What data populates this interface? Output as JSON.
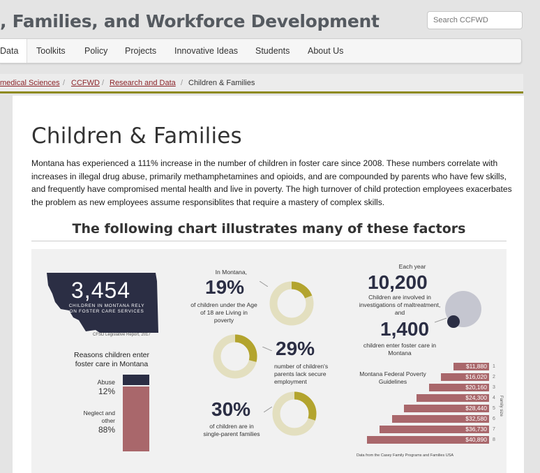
{
  "header": {
    "site_title": ", Families, and Workforce Development",
    "search_placeholder": "Search CCFWD"
  },
  "nav": {
    "items": [
      {
        "label": "Data"
      },
      {
        "label": "Toolkits"
      },
      {
        "label": "Policy"
      },
      {
        "label": "Projects"
      },
      {
        "label": "Innovative Ideas"
      },
      {
        "label": "Students"
      },
      {
        "label": "About Us"
      }
    ]
  },
  "breadcrumb": {
    "items": [
      {
        "label": "medical Sciences"
      },
      {
        "label": "CCFWD"
      },
      {
        "label": "Research and Data"
      },
      {
        "label": "Children & Families"
      }
    ],
    "separator": "/"
  },
  "page": {
    "title": "Children & Families",
    "intro": "Montana has experienced a 111% increase in the number of children in foster care since 2008. These numbers correlate with increases in illegal drug abuse, primarily methamphetamines and opioids, and are compounded by parents who have few skills, and frequently have compromised mental health and live in poverty. The high turnover of child protection employees exacerbates the problem as new employees assume responsiblites that require a mastery of complex skills.",
    "chart_heading": "The following chart illustrates many of these factors"
  },
  "infographic": {
    "montana": {
      "number": "3,454",
      "label": "CHILDREN IN MONTANA RELY ON FOSTER CARE SERVICES",
      "source": "CFSD Legislative Report, 2017"
    },
    "reasons": {
      "title": "Reasons children enter foster care in Montana",
      "abuse_label": "Abuse",
      "abuse_pct": "12%",
      "neglect_label": "Neglect and other",
      "neglect_pct": "88%"
    },
    "stat_poverty": {
      "lead": "In Montana,",
      "value": "19%",
      "text": "of children under the Age of 18 are Living in poverty",
      "fraction": 0.19
    },
    "stat_employment": {
      "value": "29%",
      "text": "number of children's parents lack secure employment",
      "fraction": 0.29
    },
    "stat_single": {
      "value": "30%",
      "text": "of children are in single-parent families",
      "fraction": 0.3
    },
    "investigations": {
      "lead": "Each year",
      "value": "10,200",
      "text": "Children are involved in investigations of maltreatment, and",
      "value2": "1,400",
      "text2": "children enter foster care in Montana"
    },
    "poverty_guidelines": {
      "title": "Montana Federal Poverty  Guidelines",
      "axis_label": "Family size",
      "source": "Data from the Casey Family Programs and Families USA"
    },
    "colors": {
      "navy": "#2b2e44",
      "olive": "#b3a42e",
      "cream": "#e3dfbf",
      "rose": "#a9676b",
      "lavender": "#c5c6d0"
    }
  },
  "chart_data": {
    "type": "bar",
    "title": "Montana Federal Poverty  Guidelines",
    "categories": [
      "1",
      "2",
      "3",
      "4",
      "5",
      "6",
      "7",
      "8"
    ],
    "values": [
      11880,
      16020,
      20160,
      24300,
      28440,
      32580,
      36730,
      40890
    ],
    "labels": [
      "$11,880",
      "$16,020",
      "$20,160",
      "$24,300",
      "$28,440",
      "$32,580",
      "$36,730",
      "$40,890"
    ],
    "xlabel": "",
    "ylabel": "Family size",
    "orientation": "horizontal",
    "xlim": [
      0,
      40890
    ]
  }
}
